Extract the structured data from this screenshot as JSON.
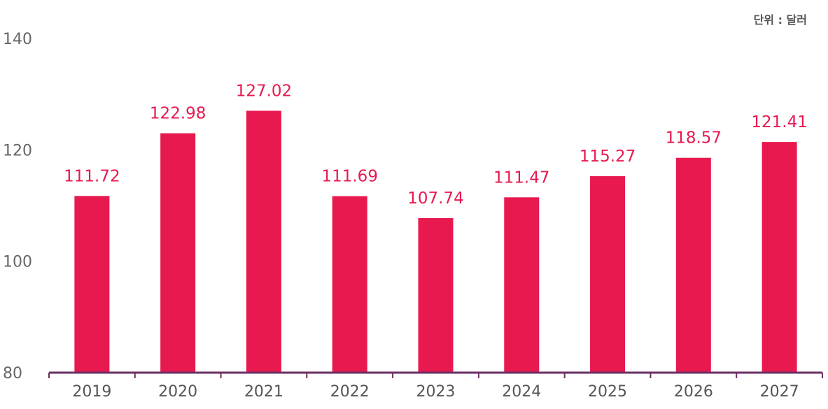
{
  "chart_data": {
    "type": "bar",
    "unit_label": "단위 : 달러",
    "categories": [
      "2019",
      "2020",
      "2021",
      "2022",
      "2023",
      "2024",
      "2025",
      "2026",
      "2027"
    ],
    "values": [
      111.72,
      122.98,
      127.02,
      111.69,
      107.74,
      111.47,
      115.27,
      118.57,
      121.41
    ],
    "value_labels": [
      "111.72",
      "122.98",
      "127.02",
      "111.69",
      "107.74",
      "111.47",
      "115.27",
      "118.57",
      "121.41"
    ],
    "y_ticks": [
      80,
      100,
      120,
      140
    ],
    "ylim": [
      80,
      140
    ],
    "grid": false,
    "legend": "none",
    "colors": {
      "bar": "#e8194f",
      "axis": "#6b2f63",
      "data_label": "#e8194f",
      "tick_label": "#666666"
    }
  }
}
